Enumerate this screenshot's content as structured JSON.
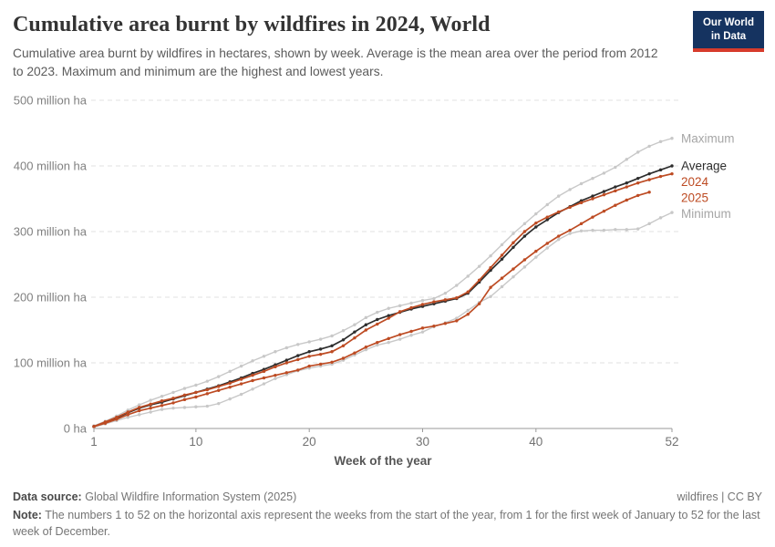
{
  "header": {
    "title": "Cumulative area burnt by wildfires in 2024, World",
    "subtitle": "Cumulative area burnt by wildfires in hectares, shown by week. Average is the mean area over the period from 2012 to 2023. Maximum and minimum are the highest and lowest years.",
    "logo": {
      "line1": "Our World",
      "line2": "in Data",
      "bg_color": "#153360",
      "bar_color": "#d73c2c"
    }
  },
  "chart_data": {
    "type": "line",
    "title": "Cumulative area burnt by wildfires in 2024, World",
    "unit": "million ha",
    "xlabel": "Week of the year",
    "x_ticks": [
      1,
      10,
      20,
      30,
      40,
      52
    ],
    "xlim": [
      1,
      52
    ],
    "ylim": [
      0,
      500
    ],
    "y_ticks": [
      {
        "value": 0,
        "label": "0 ha"
      },
      {
        "value": 100,
        "label": "100 million ha"
      },
      {
        "value": 200,
        "label": "200 million ha"
      },
      {
        "value": 300,
        "label": "300 million ha"
      },
      {
        "value": 400,
        "label": "400 million ha"
      },
      {
        "value": 500,
        "label": "500 million ha"
      }
    ],
    "grid": "dashed-horizontal",
    "legend_position": "right-of-line-ends",
    "weeks": [
      1,
      2,
      3,
      4,
      5,
      6,
      7,
      8,
      9,
      10,
      11,
      12,
      13,
      14,
      15,
      16,
      17,
      18,
      19,
      20,
      21,
      22,
      23,
      24,
      25,
      26,
      27,
      28,
      29,
      30,
      31,
      32,
      33,
      34,
      35,
      36,
      37,
      38,
      39,
      40,
      41,
      42,
      43,
      44,
      45,
      46,
      47,
      48,
      49,
      50,
      51,
      52
    ],
    "series": [
      {
        "name": "Maximum",
        "color": "#c8c8c8",
        "label_color": "#a6a6a6",
        "values": [
          4,
          11,
          19,
          28,
          36,
          43,
          49,
          55,
          61,
          66,
          72,
          79,
          87,
          95,
          103,
          110,
          117,
          123,
          128,
          132,
          136,
          141,
          149,
          158,
          169,
          177,
          183,
          187,
          191,
          195,
          198,
          206,
          218,
          232,
          247,
          263,
          280,
          297,
          312,
          327,
          341,
          354,
          364,
          373,
          381,
          389,
          398,
          410,
          421,
          430,
          437,
          442
        ]
      },
      {
        "name": "Average",
        "color": "#2d2d2d",
        "label_color": "#2d2d2d",
        "values": [
          3,
          9,
          16,
          24,
          31,
          36,
          40,
          45,
          50,
          55,
          60,
          65,
          71,
          77,
          84,
          90,
          97,
          104,
          111,
          117,
          121,
          126,
          135,
          147,
          158,
          166,
          172,
          177,
          182,
          186,
          190,
          194,
          198,
          206,
          223,
          241,
          258,
          276,
          293,
          307,
          318,
          329,
          338,
          347,
          354,
          361,
          368,
          374,
          381,
          388,
          394,
          400
        ]
      },
      {
        "name": "2024",
        "color": "#bd4b23",
        "label_color": "#bd4b23",
        "values": [
          3,
          10,
          17,
          25,
          32,
          37,
          42,
          46,
          51,
          55,
          59,
          64,
          69,
          75,
          81,
          87,
          94,
          100,
          105,
          110,
          113,
          117,
          126,
          138,
          150,
          159,
          168,
          178,
          184,
          189,
          193,
          196,
          199,
          208,
          226,
          245,
          264,
          283,
          300,
          313,
          322,
          330,
          337,
          344,
          350,
          356,
          362,
          368,
          374,
          379,
          384,
          388
        ]
      },
      {
        "name": "2025",
        "color": "#bd4b23",
        "label_color": "#bd4b23",
        "values": [
          3,
          8,
          14,
          21,
          27,
          31,
          35,
          39,
          44,
          48,
          53,
          58,
          63,
          68,
          73,
          77,
          81,
          85,
          89,
          95,
          98,
          101,
          107,
          115,
          124,
          131,
          137,
          143,
          148,
          153,
          156,
          160,
          164,
          174,
          190,
          215,
          229,
          243,
          257,
          270,
          282,
          293,
          302,
          312,
          322,
          331,
          340,
          348,
          355,
          360
        ]
      },
      {
        "name": "Minimum",
        "color": "#c8c8c8",
        "label_color": "#a6a6a6",
        "values": [
          2,
          7,
          12,
          17,
          21,
          25,
          29,
          31,
          32,
          33,
          34,
          38,
          45,
          52,
          60,
          68,
          76,
          82,
          88,
          92,
          95,
          98,
          104,
          112,
          120,
          127,
          131,
          136,
          142,
          147,
          155,
          161,
          168,
          180,
          192,
          201,
          216,
          231,
          246,
          261,
          275,
          288,
          297,
          301,
          302,
          302,
          303,
          303,
          304,
          312,
          321,
          329
        ]
      }
    ]
  },
  "footer": {
    "source_label": "Data source:",
    "source_value": "Global Wildfire Information System (2025)",
    "rights": "wildfires | CC BY",
    "note_label": "Note:",
    "note_text": "The numbers 1 to 52 on the horizontal axis represent the weeks from the start of the year, from 1 for the first week of January to 52 for the last week of December."
  }
}
